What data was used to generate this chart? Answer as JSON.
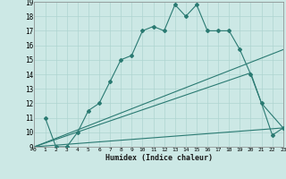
{
  "xlabel": "Humidex (Indice chaleur)",
  "xlim": [
    0,
    23
  ],
  "ylim": [
    9,
    19
  ],
  "xticks": [
    0,
    1,
    2,
    3,
    4,
    5,
    6,
    7,
    8,
    9,
    10,
    11,
    12,
    13,
    14,
    15,
    16,
    17,
    18,
    19,
    20,
    21,
    22,
    23
  ],
  "yticks": [
    9,
    10,
    11,
    12,
    13,
    14,
    15,
    16,
    17,
    18,
    19
  ],
  "bg_color": "#cce8e5",
  "line_color": "#2a7a72",
  "grid_color": "#aed4d0",
  "line1_x": [
    1,
    2,
    3,
    3,
    4,
    5,
    6,
    7,
    8,
    9,
    10,
    11,
    12,
    13,
    14,
    15,
    16,
    17,
    18,
    19,
    20,
    21,
    22,
    23
  ],
  "line1_y": [
    11,
    9,
    9,
    9,
    10,
    11.5,
    12,
    13.5,
    15,
    15.3,
    17,
    17.3,
    17,
    18.8,
    18,
    18.8,
    17,
    17,
    17,
    15.7,
    14,
    12,
    9.8,
    10.3
  ],
  "line2_x": [
    0,
    23
  ],
  "line2_y": [
    9,
    15.7
  ],
  "line3_x": [
    0,
    20,
    21,
    23
  ],
  "line3_y": [
    9,
    14.1,
    12,
    10.3
  ],
  "line4_x": [
    0,
    23
  ],
  "line4_y": [
    9,
    10.3
  ]
}
